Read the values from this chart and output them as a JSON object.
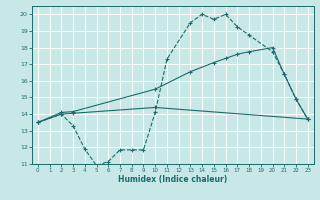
{
  "bg_color": "#c8e8e8",
  "grid_color": "#ffffff",
  "line_color": "#1a6b6b",
  "xlabel": "Humidex (Indice chaleur)",
  "xlim": [
    -0.5,
    23.5
  ],
  "ylim": [
    11,
    20.5
  ],
  "yticks": [
    11,
    12,
    13,
    14,
    15,
    16,
    17,
    18,
    19,
    20
  ],
  "xticks": [
    0,
    1,
    2,
    3,
    4,
    5,
    6,
    7,
    8,
    9,
    10,
    11,
    12,
    13,
    14,
    15,
    16,
    17,
    18,
    19,
    20,
    21,
    22,
    23
  ],
  "curve1_x": [
    0,
    2,
    3,
    4,
    5,
    6,
    7,
    8,
    9,
    10,
    11,
    13,
    14,
    15,
    16,
    17,
    18,
    20,
    21,
    22,
    23
  ],
  "curve1_y": [
    13.5,
    14.0,
    13.3,
    11.9,
    10.9,
    11.15,
    11.85,
    11.85,
    11.85,
    14.1,
    17.3,
    19.5,
    20.0,
    19.7,
    20.0,
    19.25,
    18.75,
    17.75,
    16.4,
    14.9,
    13.7
  ],
  "curve2_x": [
    0,
    2,
    3,
    10,
    13,
    15,
    16,
    17,
    18,
    20,
    21,
    22,
    23
  ],
  "curve2_y": [
    13.5,
    14.1,
    14.15,
    15.5,
    16.55,
    17.1,
    17.35,
    17.6,
    17.75,
    18.0,
    16.4,
    14.9,
    13.7
  ],
  "curve3_x": [
    0,
    2,
    3,
    10,
    23
  ],
  "curve3_y": [
    13.5,
    14.0,
    14.05,
    14.4,
    13.7
  ]
}
